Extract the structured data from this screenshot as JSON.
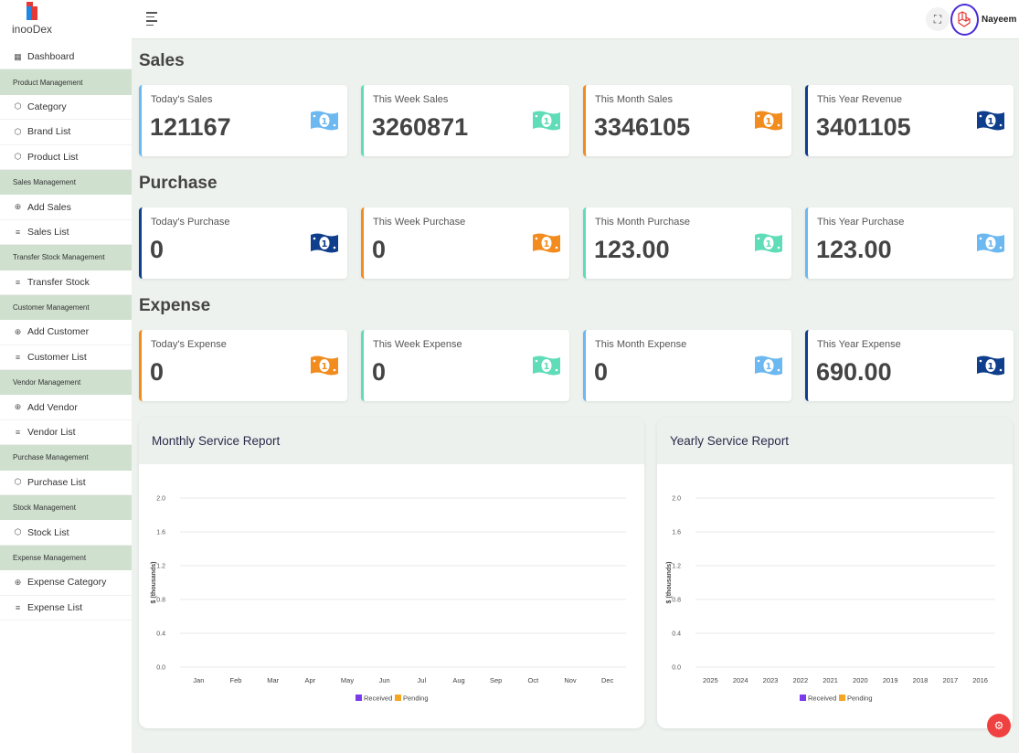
{
  "brand": {
    "name": "inooDex",
    "logo_colors": [
      "#e53935",
      "#1e88e5",
      "#fbc02d"
    ]
  },
  "sidebar": {
    "items": [
      {
        "type": "item",
        "icon": "dashboard-icon",
        "glyph": "▦",
        "label": "Dashboard"
      },
      {
        "type": "section",
        "label": "Product Management"
      },
      {
        "type": "item",
        "icon": "box-icon",
        "glyph": "⬡",
        "label": "Category"
      },
      {
        "type": "item",
        "icon": "box-icon",
        "glyph": "⬡",
        "label": "Brand List"
      },
      {
        "type": "item",
        "icon": "box-icon",
        "glyph": "⬡",
        "label": "Product List"
      },
      {
        "type": "section",
        "label": "Sales Management"
      },
      {
        "type": "item",
        "icon": "plus-circle-icon",
        "glyph": "⊕",
        "label": "Add Sales"
      },
      {
        "type": "item",
        "icon": "list-icon",
        "glyph": "≡",
        "label": "Sales List"
      },
      {
        "type": "section",
        "label": "Transfer Stock Management"
      },
      {
        "type": "item",
        "icon": "list-icon",
        "glyph": "≡",
        "label": "Transfer Stock"
      },
      {
        "type": "section",
        "label": "Customer Management"
      },
      {
        "type": "item",
        "icon": "plus-circle-icon",
        "glyph": "⊕",
        "label": "Add Customer"
      },
      {
        "type": "item",
        "icon": "list-icon",
        "glyph": "≡",
        "label": "Customer List"
      },
      {
        "type": "section",
        "label": "Vendor Management"
      },
      {
        "type": "item",
        "icon": "plus-circle-icon",
        "glyph": "⊕",
        "label": "Add Vendor"
      },
      {
        "type": "item",
        "icon": "list-icon",
        "glyph": "≡",
        "label": "Vendor List"
      },
      {
        "type": "section",
        "label": "Purchase Management"
      },
      {
        "type": "item",
        "icon": "box-icon",
        "glyph": "⬡",
        "label": "Purchase List"
      },
      {
        "type": "section",
        "label": "Stock Management"
      },
      {
        "type": "item",
        "icon": "box-icon",
        "glyph": "⬡",
        "label": "Stock List"
      },
      {
        "type": "section",
        "label": "Expense Management"
      },
      {
        "type": "item",
        "icon": "plus-circle-icon",
        "glyph": "⊕",
        "label": "Expense Category"
      },
      {
        "type": "item",
        "icon": "list-icon",
        "glyph": "≡",
        "label": "Expense List"
      }
    ]
  },
  "topbar": {
    "username": "Nayeem",
    "fullscreen_glyph": "⛶"
  },
  "sections": [
    {
      "title": "Sales",
      "cards": [
        {
          "label": "Today's Sales",
          "value": "121167",
          "color": "#6cb8f0"
        },
        {
          "label": "This Week Sales",
          "value": "3260871",
          "color": "#5fdcb8"
        },
        {
          "label": "This Month Sales",
          "value": "3346105",
          "color": "#f28c1e"
        },
        {
          "label": "This Year Revenue",
          "value": "3401105",
          "color": "#0f3e8c"
        }
      ]
    },
    {
      "title": "Purchase",
      "cards": [
        {
          "label": "Today's Purchase",
          "value": "0",
          "color": "#0f3e8c"
        },
        {
          "label": "This Week Purchase",
          "value": "0",
          "color": "#f28c1e"
        },
        {
          "label": "This Month Purchase",
          "value": "123.00",
          "color": "#5fdcb8"
        },
        {
          "label": "This Year Purchase",
          "value": "123.00",
          "color": "#6cb8f0"
        }
      ]
    },
    {
      "title": "Expense",
      "cards": [
        {
          "label": "Today's Expense",
          "value": "0",
          "color": "#f28c1e"
        },
        {
          "label": "This Week Expense",
          "value": "0",
          "color": "#5fdcb8"
        },
        {
          "label": "This Month Expense",
          "value": "0",
          "color": "#6cb8f0"
        },
        {
          "label": "This Year Expense",
          "value": "690.00",
          "color": "#0f3e8c"
        }
      ]
    }
  ],
  "chart_data": [
    {
      "type": "bar",
      "title": "Monthly Service Report",
      "ylabel": "$ (thousands)",
      "xlabel": "",
      "categories": [
        "Jan",
        "Feb",
        "Mar",
        "Apr",
        "May",
        "Jun",
        "Jul",
        "Aug",
        "Sep",
        "Oct",
        "Nov",
        "Dec"
      ],
      "yticks": [
        "2.0",
        "1.6",
        "1.2",
        "0.8",
        "0.4",
        "0.0"
      ],
      "ylim": [
        0,
        2
      ],
      "series": [
        {
          "name": "Received",
          "color": "#7c3aed",
          "values": [
            0,
            0,
            0,
            0,
            0,
            0,
            0,
            0,
            0,
            0,
            0,
            0
          ]
        },
        {
          "name": "Pending",
          "color": "#f5a623",
          "values": [
            0,
            0,
            0,
            0,
            0,
            0,
            0,
            0,
            0,
            0,
            0,
            0
          ]
        }
      ],
      "legend": "bottom",
      "grid": true
    },
    {
      "type": "bar",
      "title": "Yearly Service Report",
      "ylabel": "$ (thousands)",
      "xlabel": "",
      "categories": [
        "2025",
        "2024",
        "2023",
        "2022",
        "2021",
        "2020",
        "2019",
        "2018",
        "2017",
        "2016"
      ],
      "yticks": [
        "2.0",
        "1.6",
        "1.2",
        "0.8",
        "0.4",
        "0.0"
      ],
      "ylim": [
        0,
        2
      ],
      "series": [
        {
          "name": "Received",
          "color": "#7c3aed",
          "values": [
            0,
            0,
            0,
            0,
            0,
            0,
            0,
            0,
            0,
            0
          ]
        },
        {
          "name": "Pending",
          "color": "#f5a623",
          "values": [
            0,
            0,
            0,
            0,
            0,
            0,
            0,
            0,
            0,
            0
          ]
        }
      ],
      "legend": "bottom",
      "grid": true
    }
  ]
}
